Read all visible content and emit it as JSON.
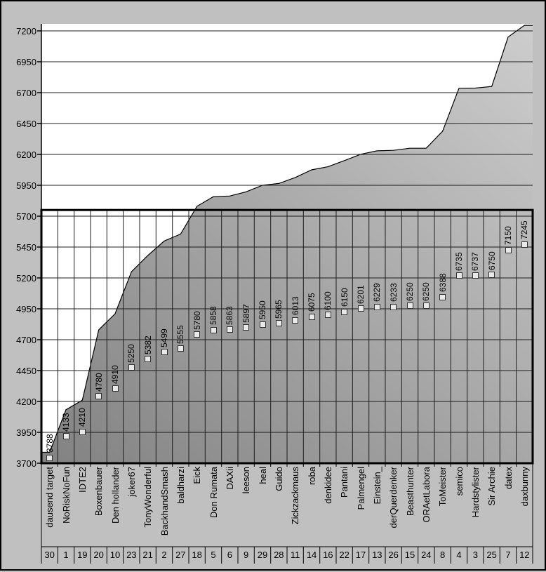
{
  "chart_data": {
    "type": "area",
    "title": "",
    "categories": [
      "dausend target",
      "NoRiskNoFun",
      "IDTE2",
      "Boxenbauer",
      "Den hollander",
      "joker67",
      "TonyWonderful",
      "BackhandSmash",
      "baldharzi",
      "Eick",
      "Don Rumata",
      "DAXii",
      "leeson",
      "heal",
      "Guido",
      "Zickzackmaus",
      "roba",
      "denkidee",
      "Pantani",
      "Palmengel",
      "Einstein_",
      "derQuerdenker",
      "Beasthunter",
      "ORAetLabora",
      "ToMeister",
      "semico",
      "Hardstylister",
      "Sir Archie",
      "datex",
      "daxbunny"
    ],
    "ranks": [
      "30",
      "1",
      "19",
      "20",
      "10",
      "23",
      "21",
      "2",
      "27",
      "18",
      "5",
      "6",
      "9",
      "29",
      "28",
      "11",
      "14",
      "16",
      "22",
      "17",
      "13",
      "26",
      "15",
      "24",
      "8",
      "4",
      "3",
      "25",
      "7",
      "12"
    ],
    "values": [
      3788,
      4133,
      4210,
      4780,
      4910,
      5250,
      5382,
      5499,
      5555,
      5780,
      5858,
      5863,
      5897,
      5950,
      5965,
      6013,
      6075,
      6100,
      6150,
      6201,
      6229,
      6233,
      6250,
      6250,
      6388,
      6735,
      6737,
      6750,
      7150,
      7245
    ],
    "ylim": [
      3700,
      7200
    ],
    "yticks": [
      3700,
      3950,
      4200,
      4450,
      4700,
      4950,
      5200,
      5450,
      5700,
      5950,
      6200,
      6450,
      6700,
      6950,
      7200
    ],
    "highlight_box_value": 5750,
    "grid": true,
    "legend_position": "none",
    "label_style": "rotated-with-legend-key",
    "colors": {
      "background": "#c0c0c0",
      "plot_bg": "#ffffff",
      "area_dark": "#828282",
      "area_light": "#cdcdcd",
      "grid": "#1c1c1c",
      "box": "#000000",
      "key_fill": "#e9e9e9"
    }
  }
}
